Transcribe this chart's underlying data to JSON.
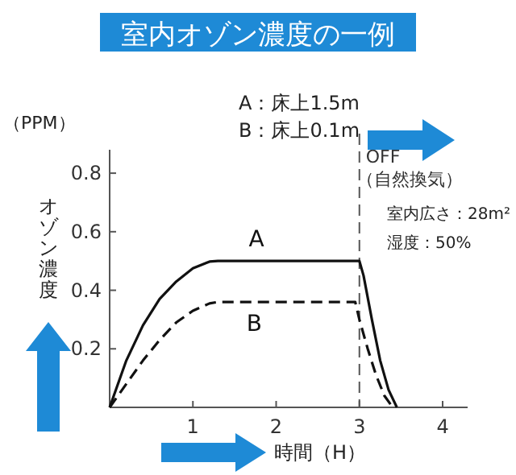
{
  "chart_data": {
    "type": "line",
    "title": "室内オゾン濃度の一例",
    "xlabel": "時間（H）",
    "ylabel": "オゾン濃度",
    "annotations": [
      "（PPM）",
      "A：床上1.5m",
      "B：床上0.1m",
      "室内広さ：28m²",
      "湿度：50%"
    ],
    "xlim": [
      0,
      4.3
    ],
    "ylim": [
      0,
      0.88
    ],
    "xticks": [
      1,
      2,
      3,
      4
    ],
    "yticks": [
      0.2,
      0.4,
      0.6,
      0.8
    ],
    "ref_lines": [
      {
        "axis": "x",
        "value": 3,
        "label": "OFF\n（自然換気）",
        "color": "#555555",
        "line_style": "dashed"
      }
    ],
    "series": [
      {
        "name": "A",
        "color": "#111111",
        "line_style": "solid",
        "x": [
          0,
          0.2,
          0.4,
          0.6,
          0.8,
          1.0,
          1.2,
          1.3,
          3.0,
          3.05,
          3.15,
          3.25,
          3.35,
          3.45
        ],
        "values": [
          0,
          0.16,
          0.28,
          0.37,
          0.43,
          0.475,
          0.498,
          0.5,
          0.5,
          0.45,
          0.3,
          0.16,
          0.06,
          0
        ]
      },
      {
        "name": "B",
        "color": "#111111",
        "line_style": "dashed",
        "x": [
          0,
          0.2,
          0.4,
          0.6,
          0.8,
          1.0,
          1.2,
          1.3,
          2.95,
          3.0,
          3.1,
          3.2,
          3.3,
          3.4
        ],
        "values": [
          0,
          0.08,
          0.16,
          0.23,
          0.29,
          0.33,
          0.355,
          0.36,
          0.36,
          0.3,
          0.2,
          0.11,
          0.04,
          0
        ]
      }
    ]
  }
}
